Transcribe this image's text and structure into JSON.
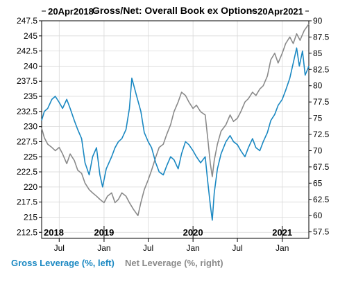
{
  "chart_data": {
    "type": "line",
    "title": "Gross/Net: Overall Book ex Options",
    "date_range_start": "20Apr2018",
    "date_range_end": "20Apr2021",
    "x_start": "2018-04-20",
    "x_end": "2021-04-20",
    "x_month_ticks": [
      {
        "label": "Jul",
        "date": "2018-07-01"
      },
      {
        "label": "Jan",
        "date": "2019-01-01"
      },
      {
        "label": "Jul",
        "date": "2019-07-01"
      },
      {
        "label": "Jan",
        "date": "2020-01-01"
      },
      {
        "label": "Jul",
        "date": "2020-07-01"
      },
      {
        "label": "Jan",
        "date": "2021-01-01"
      }
    ],
    "x_year_labels": [
      {
        "label": "2018",
        "date": "2018-04-20"
      },
      {
        "label": "2019",
        "date": "2019-01-01"
      },
      {
        "label": "2020",
        "date": "2020-01-01"
      },
      {
        "label": "2021",
        "date": "2021-01-01"
      }
    ],
    "y_left": {
      "ticks": [
        "212.5",
        "215",
        "217.5",
        "220",
        "222.5",
        "225",
        "227.5",
        "230",
        "232.5",
        "235",
        "237.5",
        "240",
        "242.5",
        "245",
        "247.5"
      ],
      "lim": [
        211.5,
        247.5
      ]
    },
    "y_right": {
      "ticks": [
        "57.5",
        "60",
        "62.5",
        "65",
        "67.5",
        "70",
        "72.5",
        "75",
        "77.5",
        "80",
        "82.5",
        "85",
        "87.5",
        "90"
      ],
      "lim": [
        56.5,
        90
      ]
    },
    "grid": true,
    "legend_position": "bottom",
    "series": [
      {
        "name": "Gross Leverage (%, left)",
        "axis": "left",
        "color": "#1a88c2",
        "points": [
          [
            "2018-04-20",
            231.0
          ],
          [
            "2018-05-01",
            232.5
          ],
          [
            "2018-05-15",
            233.0
          ],
          [
            "2018-06-01",
            234.5
          ],
          [
            "2018-06-15",
            235.0
          ],
          [
            "2018-07-01",
            234.0
          ],
          [
            "2018-07-15",
            233.0
          ],
          [
            "2018-08-01",
            234.5
          ],
          [
            "2018-08-15",
            233.0
          ],
          [
            "2018-09-01",
            231.0
          ],
          [
            "2018-09-15",
            229.5
          ],
          [
            "2018-10-01",
            228.0
          ],
          [
            "2018-10-15",
            224.0
          ],
          [
            "2018-11-01",
            222.0
          ],
          [
            "2018-11-15",
            225.0
          ],
          [
            "2018-12-01",
            226.5
          ],
          [
            "2018-12-15",
            222.0
          ],
          [
            "2018-12-26",
            220.0
          ],
          [
            "2019-01-10",
            223.0
          ],
          [
            "2019-02-01",
            225.0
          ],
          [
            "2019-02-15",
            226.5
          ],
          [
            "2019-03-01",
            227.5
          ],
          [
            "2019-03-15",
            228.0
          ],
          [
            "2019-04-01",
            229.5
          ],
          [
            "2019-04-15",
            233.0
          ],
          [
            "2019-04-25",
            238.0
          ],
          [
            "2019-05-05",
            236.5
          ],
          [
            "2019-05-15",
            235.0
          ],
          [
            "2019-06-01",
            232.5
          ],
          [
            "2019-06-15",
            229.0
          ],
          [
            "2019-07-01",
            227.5
          ],
          [
            "2019-07-15",
            226.5
          ],
          [
            "2019-08-01",
            224.0
          ],
          [
            "2019-08-15",
            222.5
          ],
          [
            "2019-09-01",
            222.0
          ],
          [
            "2019-09-15",
            223.5
          ],
          [
            "2019-10-01",
            225.0
          ],
          [
            "2019-10-15",
            224.5
          ],
          [
            "2019-11-01",
            223.0
          ],
          [
            "2019-11-15",
            225.5
          ],
          [
            "2019-12-01",
            227.5
          ],
          [
            "2019-12-15",
            227.0
          ],
          [
            "2020-01-01",
            226.0
          ],
          [
            "2020-01-15",
            225.0
          ],
          [
            "2020-02-01",
            224.0
          ],
          [
            "2020-02-20",
            225.0
          ],
          [
            "2020-03-01",
            221.0
          ],
          [
            "2020-03-12",
            217.0
          ],
          [
            "2020-03-20",
            214.5
          ],
          [
            "2020-03-28",
            219.0
          ],
          [
            "2020-04-10",
            223.0
          ],
          [
            "2020-04-25",
            225.5
          ],
          [
            "2020-05-15",
            227.5
          ],
          [
            "2020-06-01",
            228.5
          ],
          [
            "2020-06-15",
            227.5
          ],
          [
            "2020-07-01",
            227.0
          ],
          [
            "2020-07-15",
            226.0
          ],
          [
            "2020-08-01",
            225.0
          ],
          [
            "2020-08-15",
            226.5
          ],
          [
            "2020-09-01",
            228.0
          ],
          [
            "2020-09-15",
            226.5
          ],
          [
            "2020-10-01",
            226.0
          ],
          [
            "2020-10-15",
            227.5
          ],
          [
            "2020-11-01",
            229.0
          ],
          [
            "2020-11-15",
            231.0
          ],
          [
            "2020-12-01",
            232.0
          ],
          [
            "2020-12-15",
            233.5
          ],
          [
            "2021-01-01",
            234.5
          ],
          [
            "2021-01-15",
            236.0
          ],
          [
            "2021-02-01",
            238.0
          ],
          [
            "2021-02-15",
            240.5
          ],
          [
            "2021-03-01",
            243.0
          ],
          [
            "2021-03-12",
            240.0
          ],
          [
            "2021-03-25",
            242.5
          ],
          [
            "2021-04-05",
            238.5
          ],
          [
            "2021-04-20",
            240.0
          ]
        ]
      },
      {
        "name": "Net Leverage (%, right)",
        "axis": "right",
        "color": "#8a8a8a",
        "points": [
          [
            "2018-04-20",
            73.5
          ],
          [
            "2018-05-01",
            72.0
          ],
          [
            "2018-05-15",
            71.0
          ],
          [
            "2018-06-01",
            70.5
          ],
          [
            "2018-06-15",
            70.0
          ],
          [
            "2018-07-01",
            70.5
          ],
          [
            "2018-07-15",
            69.5
          ],
          [
            "2018-08-01",
            68.0
          ],
          [
            "2018-08-15",
            69.5
          ],
          [
            "2018-09-01",
            68.5
          ],
          [
            "2018-09-15",
            67.0
          ],
          [
            "2018-10-01",
            66.5
          ],
          [
            "2018-10-15",
            65.0
          ],
          [
            "2018-11-01",
            64.0
          ],
          [
            "2018-11-15",
            63.5
          ],
          [
            "2018-12-01",
            63.0
          ],
          [
            "2018-12-15",
            62.5
          ],
          [
            "2019-01-01",
            62.0
          ],
          [
            "2019-01-15",
            63.0
          ],
          [
            "2019-02-01",
            63.5
          ],
          [
            "2019-02-15",
            62.0
          ],
          [
            "2019-03-01",
            62.5
          ],
          [
            "2019-03-15",
            63.5
          ],
          [
            "2019-04-01",
            63.0
          ],
          [
            "2019-04-15",
            62.0
          ],
          [
            "2019-05-01",
            61.0
          ],
          [
            "2019-05-20",
            60.0
          ],
          [
            "2019-06-01",
            62.0
          ],
          [
            "2019-06-15",
            64.0
          ],
          [
            "2019-07-01",
            65.5
          ],
          [
            "2019-07-15",
            67.0
          ],
          [
            "2019-08-01",
            69.0
          ],
          [
            "2019-08-15",
            70.5
          ],
          [
            "2019-09-01",
            71.0
          ],
          [
            "2019-09-15",
            72.5
          ],
          [
            "2019-10-01",
            74.0
          ],
          [
            "2019-10-15",
            76.0
          ],
          [
            "2019-11-01",
            77.5
          ],
          [
            "2019-11-15",
            79.0
          ],
          [
            "2019-12-01",
            78.5
          ],
          [
            "2019-12-15",
            77.5
          ],
          [
            "2020-01-01",
            76.5
          ],
          [
            "2020-01-15",
            77.0
          ],
          [
            "2020-02-01",
            76.0
          ],
          [
            "2020-02-20",
            75.5
          ],
          [
            "2020-03-01",
            72.0
          ],
          [
            "2020-03-12",
            68.0
          ],
          [
            "2020-03-20",
            66.0
          ],
          [
            "2020-03-28",
            68.5
          ],
          [
            "2020-04-10",
            71.0
          ],
          [
            "2020-04-25",
            73.0
          ],
          [
            "2020-05-15",
            74.0
          ],
          [
            "2020-06-01",
            75.5
          ],
          [
            "2020-06-15",
            74.5
          ],
          [
            "2020-07-01",
            75.0
          ],
          [
            "2020-07-15",
            76.0
          ],
          [
            "2020-08-01",
            77.5
          ],
          [
            "2020-08-15",
            78.0
          ],
          [
            "2020-09-01",
            79.0
          ],
          [
            "2020-09-15",
            78.5
          ],
          [
            "2020-10-01",
            79.5
          ],
          [
            "2020-10-15",
            80.0
          ],
          [
            "2020-11-01",
            81.5
          ],
          [
            "2020-11-15",
            84.0
          ],
          [
            "2020-12-01",
            85.0
          ],
          [
            "2020-12-15",
            83.5
          ],
          [
            "2021-01-01",
            85.0
          ],
          [
            "2021-01-15",
            86.5
          ],
          [
            "2021-02-01",
            87.5
          ],
          [
            "2021-02-15",
            86.5
          ],
          [
            "2021-03-01",
            88.0
          ],
          [
            "2021-03-15",
            87.0
          ],
          [
            "2021-04-01",
            88.5
          ],
          [
            "2021-04-20",
            89.5
          ]
        ]
      }
    ]
  }
}
